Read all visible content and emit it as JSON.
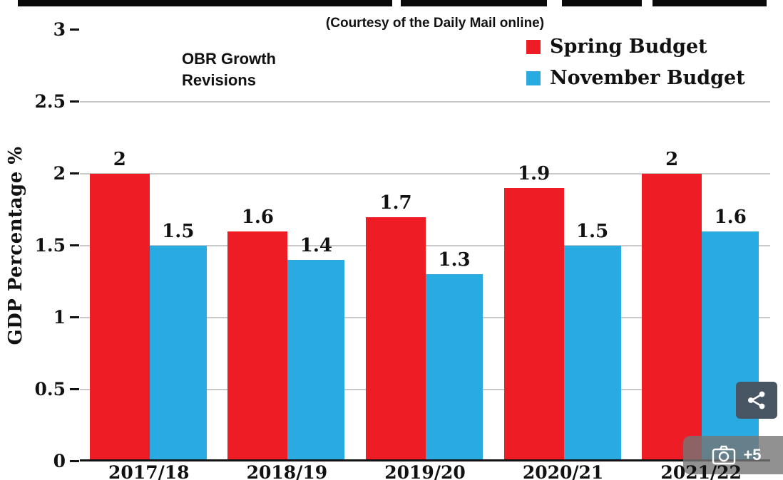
{
  "header": {
    "courtesy_text": "(Courtesy of the Daily Mail online)",
    "annotation_text": "OBR Growth\nRevisions"
  },
  "chart_data": {
    "type": "bar",
    "title": "OBR Growth Revisions",
    "subtitle": "(Courtesy of the Daily Mail online)",
    "xlabel": "",
    "ylabel": "GDP Percentage %",
    "categories": [
      "2017/18",
      "2018/19",
      "2019/20",
      "2020/21",
      "2021/22"
    ],
    "series": [
      {
        "name": "Spring Budget",
        "color": "#ee1c25",
        "values": [
          2,
          1.6,
          1.7,
          1.9,
          2
        ]
      },
      {
        "name": "November Budget",
        "color": "#29abe2",
        "values": [
          1.5,
          1.4,
          1.3,
          1.5,
          1.6
        ]
      }
    ],
    "ylim": [
      0,
      3
    ],
    "yticks": [
      0,
      0.5,
      1,
      1.5,
      2,
      2.5,
      3
    ],
    "grid": true,
    "legend_position": "top-right",
    "bar_value_labels": [
      "2",
      "1.5",
      "1.6",
      "1.4",
      "1.7",
      "1.3",
      "1.9",
      "1.5",
      "2",
      "1.6"
    ]
  },
  "overlay": {
    "photo_count": "+5"
  }
}
